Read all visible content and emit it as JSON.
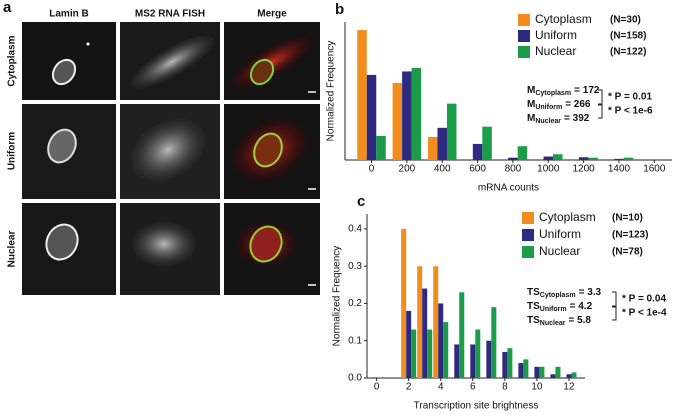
{
  "panel_a": {
    "label": "a",
    "columns": [
      "Lamin B",
      "MS2 RNA FISH",
      "Merge"
    ],
    "rows": [
      "Cytoplasm",
      "Uniform",
      "Nuclear"
    ]
  },
  "chart_data": [
    {
      "type": "bar",
      "panel": "b",
      "x_label": "mRNA counts",
      "y_label": "Normalized Frequency",
      "x": [
        0,
        200,
        400,
        600,
        800,
        1000,
        1200,
        1400
      ],
      "series": [
        {
          "name": "Cytoplasm",
          "n_label": "(N=30)",
          "color": "#f28c1c",
          "values": [
            0.565,
            0.335,
            0.1,
            0,
            0,
            0,
            0,
            0
          ]
        },
        {
          "name": "Uniform",
          "n_label": "(N=158)",
          "color": "#2e2a80",
          "values": [
            0.37,
            0.385,
            0.14,
            0.07,
            0.01,
            0.015,
            0.012,
            0.005
          ]
        },
        {
          "name": "Nuclear",
          "n_label": "(N=122)",
          "color": "#1a9c48",
          "values": [
            0.105,
            0.4,
            0.245,
            0.145,
            0.06,
            0.025,
            0.01,
            0.01
          ]
        }
      ],
      "xlim": [
        -150,
        1700
      ],
      "xticks": [
        0,
        200,
        400,
        600,
        800,
        1000,
        1200,
        1400,
        1600
      ],
      "ylim": [
        0,
        0.6
      ],
      "stats": [
        {
          "symbol": "M",
          "sub": "Cytoplasm",
          "text": "= 172"
        },
        {
          "symbol": "M",
          "sub": "Uniform",
          "text": "= 266"
        },
        {
          "symbol": "M",
          "sub": "Nuclear",
          "text": "= 392"
        }
      ],
      "significance": [
        "* P = 0.01",
        "* P < 1e-6"
      ]
    },
    {
      "type": "bar",
      "panel": "c",
      "x_label": "Transcription site brightness",
      "y_label": "Normalized Frequency",
      "x": [
        2,
        3,
        4,
        5,
        6,
        7,
        8,
        9,
        10,
        11,
        12
      ],
      "series": [
        {
          "name": "Cytoplasm",
          "n_label": "(N=10)",
          "color": "#f28c1c",
          "values": [
            0.4,
            0.3,
            0.3,
            0,
            0,
            0,
            0,
            0,
            0,
            0,
            0
          ]
        },
        {
          "name": "Uniform",
          "n_label": "(N=123)",
          "color": "#2e2a80",
          "values": [
            0.18,
            0.24,
            0.2,
            0.09,
            0.09,
            0.1,
            0.07,
            0.04,
            0.03,
            0.01,
            0.01
          ]
        },
        {
          "name": "Nuclear",
          "n_label": "(N=78)",
          "color": "#1a9c48",
          "values": [
            0.13,
            0.13,
            0.15,
            0.23,
            0.13,
            0.19,
            0.08,
            0.05,
            0.03,
            0.03,
            0.015
          ]
        }
      ],
      "xlim": [
        -0.6,
        13
      ],
      "xticks": [
        0,
        2,
        4,
        6,
        8,
        10,
        12
      ],
      "ylim": [
        0,
        0.44
      ],
      "yticks": [
        {
          "value": 0,
          "label": "0.0"
        },
        0.1,
        0.2,
        0.3,
        0.4
      ],
      "stats": [
        {
          "symbol": "TS",
          "sub": "Cytoplasm",
          "text": "= 3.3"
        },
        {
          "symbol": "TS",
          "sub": "Uniform",
          "text": "= 4.2"
        },
        {
          "symbol": "TS",
          "sub": "Nuclear",
          "text": "= 5.8"
        }
      ],
      "significance": [
        "* P = 0.04",
        "* P < 1e-4"
      ]
    }
  ]
}
